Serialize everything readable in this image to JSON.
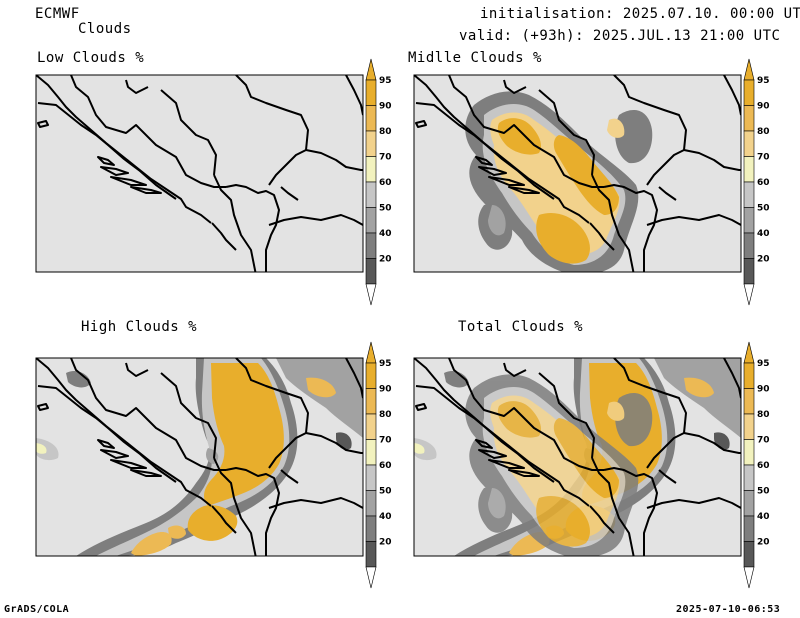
{
  "header": {
    "model": "ECMWF",
    "field": "Clouds",
    "init": "initialisation: 2025.07.10. 00:00 UTC",
    "valid": "valid: (+93h): 2025.JUL.13 21:00 UTC"
  },
  "footer": {
    "left": "GrADS/COLA",
    "right": "2025-07-10-06:53"
  },
  "colorbar": {
    "levels": [
      20,
      40,
      50,
      60,
      70,
      80,
      90,
      95
    ],
    "colors": [
      "#585858",
      "#7e7e7e",
      "#a2a2a2",
      "#c6c6c6",
      "#f2f2be",
      "#f2d28c",
      "#ecb954",
      "#e8ae2c"
    ],
    "under_color": "#ffffff",
    "over_color": "#e8ae2c"
  },
  "panels": [
    {
      "id": "low",
      "title": "Low Clouds %"
    },
    {
      "id": "middle",
      "title": "Midlle Clouds %"
    },
    {
      "id": "high",
      "title": "High Clouds %"
    },
    {
      "id": "total",
      "title": "Total Clouds %"
    }
  ],
  "chart_data": {
    "type": "heatmap",
    "units": "%",
    "levels": [
      20,
      40,
      50,
      60,
      70,
      80,
      90,
      95
    ],
    "panels": [
      {
        "title": "Low Clouds %",
        "coverage": "below 20 everywhere"
      },
      {
        "title": "Midlle Clouds %",
        "max_band": ">95",
        "coverage": "bands 20-95, maxima north-center and south-center"
      },
      {
        "title": "High Clouds %",
        "max_band": ">95",
        "coverage": "large >95 area center-east and south"
      },
      {
        "title": "Total Clouds %",
        "max_band": ">95",
        "coverage": "large >95 area center-east, north and south"
      }
    ]
  }
}
